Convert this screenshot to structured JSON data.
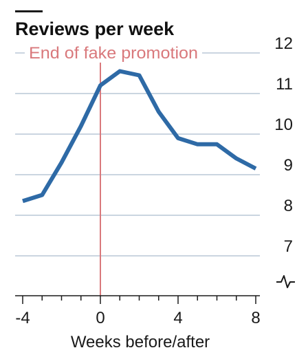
{
  "chart_data": {
    "type": "line",
    "title": "Reviews per week",
    "xlabel": "Weeks before/after",
    "ylabel": "",
    "x_ticks": [
      -4,
      0,
      4,
      8
    ],
    "x_tick_labels": [
      "-4",
      "0",
      "4",
      "8"
    ],
    "y_ticks": [
      7,
      8,
      9,
      10,
      11,
      12
    ],
    "y_tick_labels": [
      "7",
      "8",
      "9",
      "10",
      "11",
      "12"
    ],
    "xlim": [
      -4,
      8
    ],
    "ylim": [
      7,
      12
    ],
    "axis_break": true,
    "grid": true,
    "series": [
      {
        "x": [
          -4,
          -3,
          -2,
          -1,
          0,
          1,
          2,
          3,
          4,
          5,
          6,
          7,
          8
        ],
        "values": [
          8.35,
          8.5,
          9.3,
          10.2,
          11.2,
          11.55,
          11.45,
          10.55,
          9.9,
          9.75,
          9.75,
          9.4,
          9.15
        ],
        "color": "#2e6aa6"
      }
    ],
    "annotations": [
      {
        "x": 0,
        "label": "End of fake promotion",
        "color": "#d9797c"
      }
    ]
  }
}
